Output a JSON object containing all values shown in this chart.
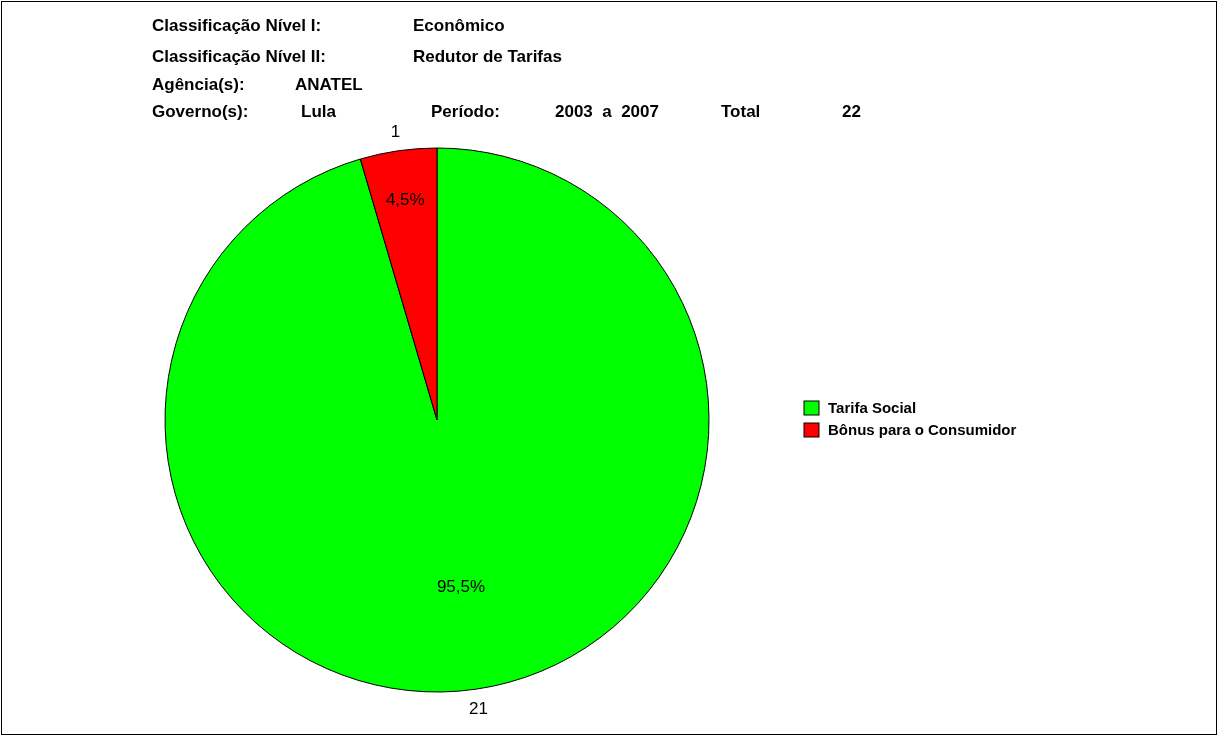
{
  "chart_data": {
    "type": "pie",
    "annotations": [
      "Classificação Nível I:",
      "Econômico",
      "Classificação Nível II:",
      "Redutor de Tarifas",
      "Agência(s):",
      "ANATEL",
      "Governo(s):",
      "Lula",
      "Período:",
      "2003  a  2007",
      "Total",
      "22",
      {
        "text": "95,5%",
        "x": "Tarifa Social"
      },
      {
        "text": "4,5%",
        "x": "Bônus para o Consumidor"
      }
    ],
    "categories": [
      "Tarifa Social",
      "Bônus para o Consumidor"
    ],
    "values": [
      21,
      1
    ],
    "colors": [
      "#00ff00",
      "#ff0000"
    ],
    "data_labels": true,
    "legend": "right"
  }
}
